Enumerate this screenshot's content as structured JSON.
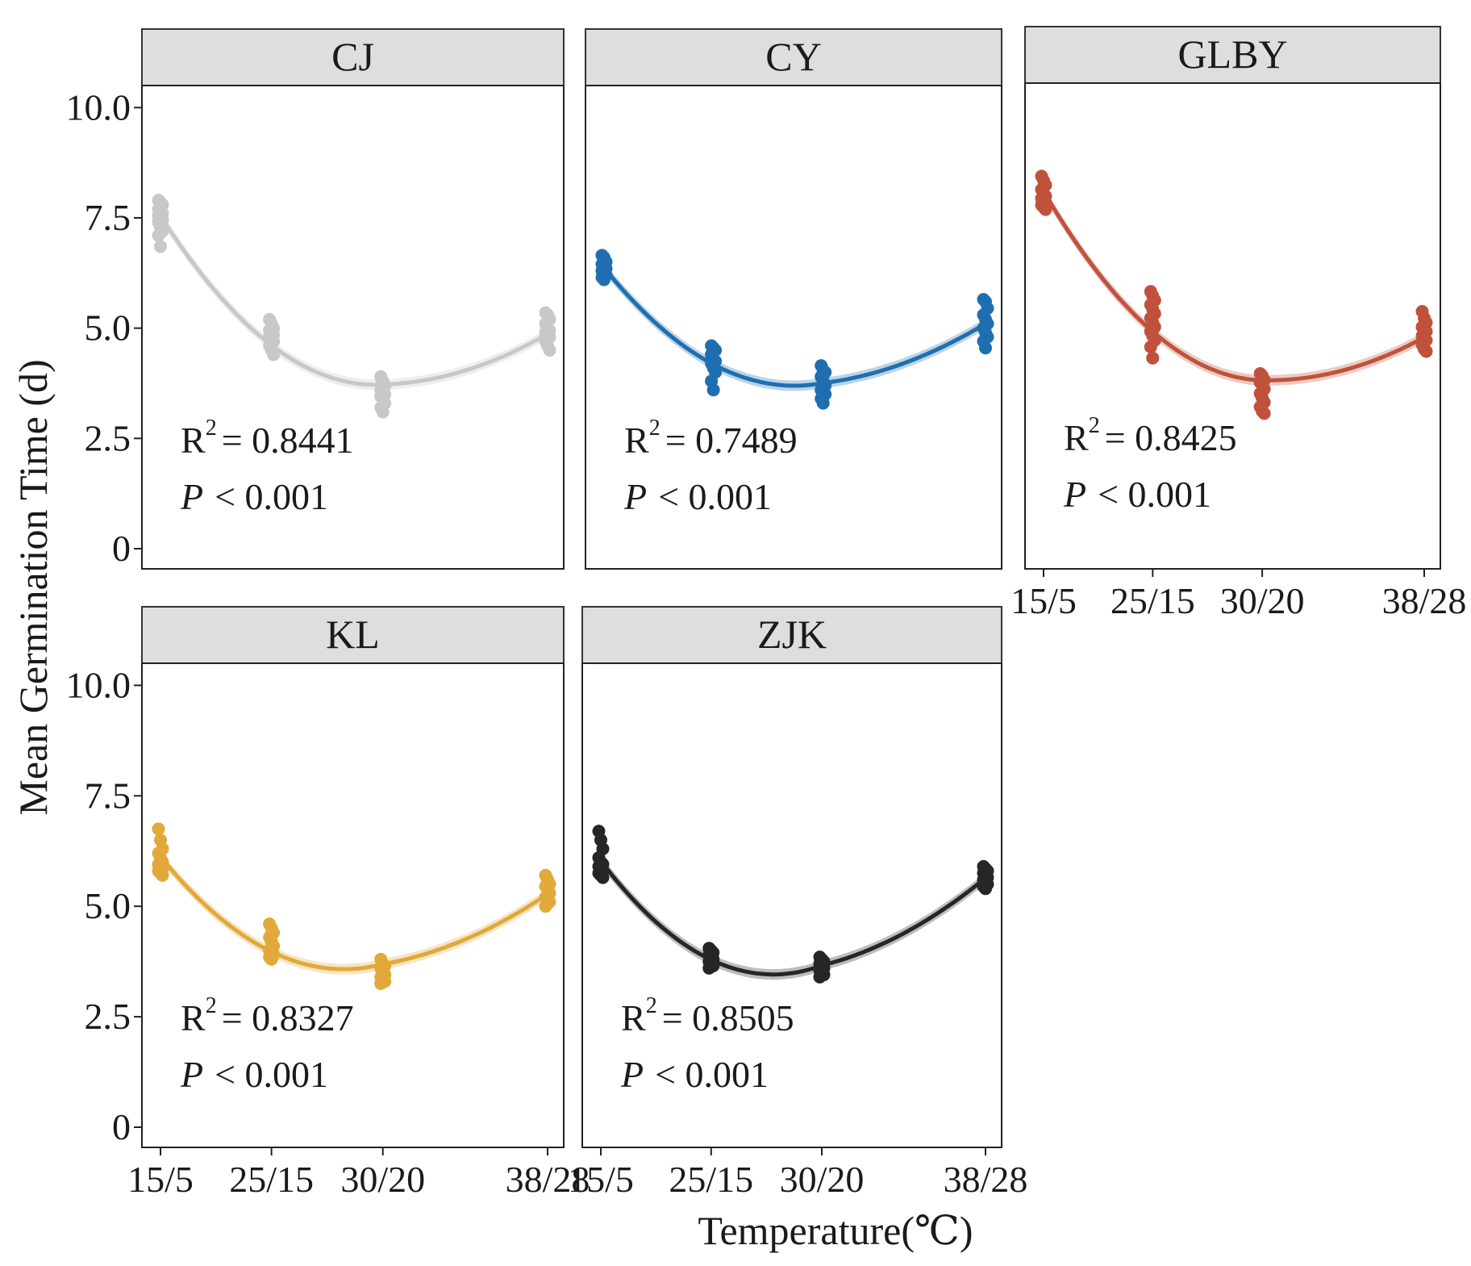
{
  "chart_data": {
    "type": "scatter",
    "title": "",
    "ylabel": "Mean Germination Time (d)",
    "xlabel": "Temperature(℃)",
    "categories": [
      "15/5",
      "25/15",
      "30/20",
      "38/28"
    ],
    "yticks": [
      "0",
      "2.5",
      "5.0",
      "7.5",
      "10.0"
    ],
    "ytick_values": [
      0,
      2.5,
      5.0,
      7.5,
      10.0
    ],
    "ylim": [
      0,
      10.5
    ],
    "fit": "quadratic with confidence band",
    "panels": [
      {
        "name": "CJ",
        "color": "#c8c8c8",
        "r2_label": "R",
        "r2_sup": "2",
        "r2_text": "= 0.8441",
        "p_label": "P",
        "p_text": "< 0.001",
        "points": [
          [
            7.9,
            7.85,
            7.8,
            7.7,
            7.65,
            7.6,
            7.55,
            7.5,
            7.45,
            7.4,
            7.3,
            7.2,
            7.1,
            6.85
          ],
          [
            5.2,
            5.1,
            5.0,
            4.95,
            4.9,
            4.85,
            4.8,
            4.75,
            4.7,
            4.6,
            4.5,
            4.4
          ],
          [
            3.9,
            3.8,
            3.7,
            3.6,
            3.55,
            3.5,
            3.45,
            3.4,
            3.3,
            3.2,
            3.1
          ],
          [
            5.35,
            5.3,
            5.2,
            5.1,
            5.0,
            4.95,
            4.9,
            4.85,
            4.8,
            4.7,
            4.6,
            4.5
          ]
        ]
      },
      {
        "name": "CY",
        "color": "#1f6fb0",
        "r2_label": "R",
        "r2_sup": "2",
        "r2_text": "= 0.7489",
        "p_label": "P",
        "p_text": "< 0.001",
        "points": [
          [
            6.65,
            6.6,
            6.5,
            6.45,
            6.4,
            6.35,
            6.3,
            6.25,
            6.2,
            6.15,
            6.1
          ],
          [
            4.6,
            4.55,
            4.5,
            4.4,
            4.3,
            4.25,
            4.2,
            4.1,
            4.0,
            3.8,
            3.6
          ],
          [
            4.15,
            4.05,
            4.0,
            3.9,
            3.8,
            3.7,
            3.6,
            3.55,
            3.5,
            3.4,
            3.3
          ],
          [
            5.65,
            5.6,
            5.45,
            5.3,
            5.2,
            5.1,
            5.0,
            4.9,
            4.8,
            4.7,
            4.55
          ]
        ]
      },
      {
        "name": "GLBY",
        "color": "#c0523c",
        "r2_label": "R",
        "r2_sup": "2",
        "r2_text": "= 0.8425",
        "p_label": "P",
        "p_text": "< 0.001",
        "points": [
          [
            8.4,
            8.3,
            8.2,
            8.1,
            8.0,
            7.95,
            7.9,
            7.85,
            7.8,
            7.75,
            7.7,
            7.65
          ],
          [
            5.8,
            5.7,
            5.6,
            5.5,
            5.4,
            5.3,
            5.2,
            5.1,
            5.0,
            4.9,
            4.8,
            4.7,
            4.55,
            4.3
          ],
          [
            3.95,
            3.9,
            3.8,
            3.75,
            3.7,
            3.6,
            3.5,
            3.4,
            3.3,
            3.2,
            3.1,
            3.05
          ],
          [
            5.35,
            5.2,
            5.1,
            5.0,
            4.95,
            4.9,
            4.8,
            4.75,
            4.7,
            4.6,
            4.5,
            4.45
          ]
        ]
      },
      {
        "name": "KL",
        "color": "#e0a93a",
        "r2_label": "R",
        "r2_sup": "2",
        "r2_text": "= 0.8327",
        "p_label": "P",
        "p_text": "< 0.001",
        "points": [
          [
            6.75,
            6.5,
            6.3,
            6.2,
            6.1,
            6.0,
            5.95,
            5.9,
            5.85,
            5.8,
            5.75,
            5.7
          ],
          [
            4.6,
            4.5,
            4.4,
            4.3,
            4.2,
            4.1,
            4.0,
            3.95,
            3.9,
            3.85,
            3.8
          ],
          [
            3.8,
            3.7,
            3.65,
            3.6,
            3.5,
            3.45,
            3.4,
            3.35,
            3.3,
            3.25
          ],
          [
            5.7,
            5.6,
            5.5,
            5.45,
            5.4,
            5.3,
            5.2,
            5.15,
            5.1,
            5.0
          ]
        ]
      },
      {
        "name": "ZJK",
        "color": "#262626",
        "r2_label": "R",
        "r2_sup": "2",
        "r2_text": "= 0.8505",
        "p_label": "P",
        "p_text": "< 0.001",
        "points": [
          [
            6.7,
            6.5,
            6.3,
            6.1,
            6.0,
            5.95,
            5.9,
            5.85,
            5.8,
            5.75,
            5.7,
            5.65
          ],
          [
            4.05,
            4.0,
            3.95,
            3.9,
            3.85,
            3.8,
            3.75,
            3.7,
            3.65,
            3.6
          ],
          [
            3.85,
            3.8,
            3.75,
            3.7,
            3.65,
            3.6,
            3.55,
            3.5,
            3.45,
            3.4
          ],
          [
            5.9,
            5.85,
            5.8,
            5.75,
            5.7,
            5.65,
            5.6,
            5.55,
            5.5,
            5.45,
            5.4
          ]
        ]
      }
    ]
  }
}
